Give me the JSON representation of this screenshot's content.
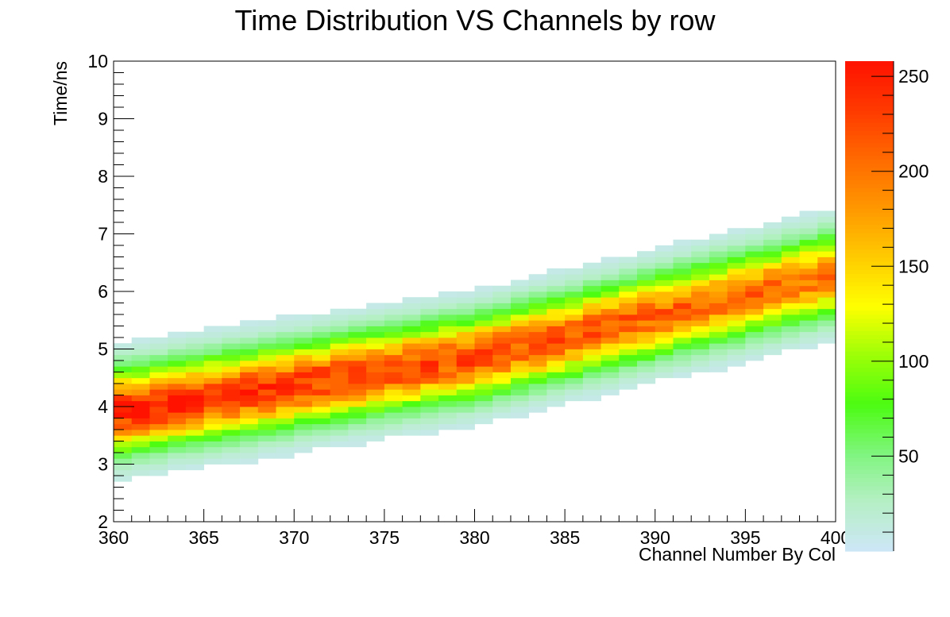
{
  "chart_data": {
    "type": "heatmap",
    "title": "Time Distribution VS Channels by row",
    "xlabel": "Channel Number By Col",
    "ylabel": "Time/ns",
    "xlim": [
      360,
      400
    ],
    "ylim": [
      2,
      10
    ],
    "x_ticks": [
      "360",
      "365",
      "370",
      "375",
      "380",
      "385",
      "390",
      "395",
      "400"
    ],
    "y_ticks": [
      "2",
      "3",
      "4",
      "5",
      "6",
      "7",
      "8",
      "9",
      "10"
    ],
    "bin_width_x": 1,
    "bin_width_y": 0.1,
    "ridge": {
      "channels": [
        360,
        380,
        400
      ],
      "peak_time_ns": [
        3.9,
        4.85,
        6.3
      ],
      "peak_counts": [
        250,
        222,
        200
      ],
      "sigma_ns": 0.46
    },
    "colorbar": {
      "min": 0,
      "max": 258,
      "ticks": [
        "50",
        "100",
        "150",
        "200",
        "250"
      ],
      "tick_values": [
        50,
        100,
        150,
        200,
        250
      ],
      "palette": [
        "#cde6f8",
        "#b6efc6",
        "#7ff57e",
        "#4cfc11",
        "#9cff07",
        "#ffff00",
        "#ffcb00",
        "#ff9800",
        "#ff6a00",
        "#ff3a00",
        "#ff1200"
      ]
    },
    "grid": false,
    "legend": "none"
  }
}
